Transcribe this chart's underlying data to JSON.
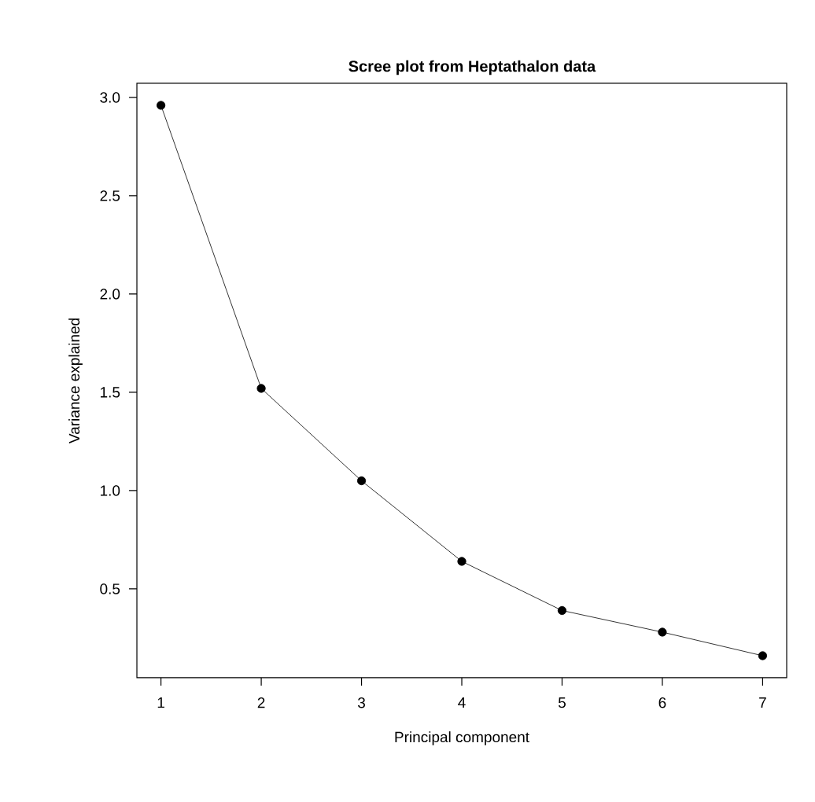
{
  "chart_data": {
    "type": "line",
    "title": "**Scree plot from Heptathalon data**",
    "xlabel": "Principal component",
    "ylabel": "Variance explained",
    "x": [
      1,
      2,
      3,
      4,
      5,
      6,
      7
    ],
    "values": [
      2.96,
      1.52,
      1.05,
      0.64,
      0.39,
      0.28,
      0.16
    ],
    "color": "#000000",
    "marker": "circle",
    "line_style": "solid",
    "grid": false,
    "xlim": [
      0.76,
      7.24
    ],
    "ylim": [
      0.048,
      3.072
    ],
    "xticks": [
      1,
      2,
      3,
      4,
      5,
      6,
      7
    ],
    "yticks": [
      {
        "value": 0.5,
        "label": "0.5"
      },
      {
        "value": 1.0,
        "label": "1.0"
      },
      {
        "value": 1.5,
        "label": "1.5"
      },
      {
        "value": 2.0,
        "label": "2.0"
      },
      {
        "value": 2.5,
        "label": "2.5"
      },
      {
        "value": 3.0,
        "label": "3.0"
      }
    ]
  }
}
